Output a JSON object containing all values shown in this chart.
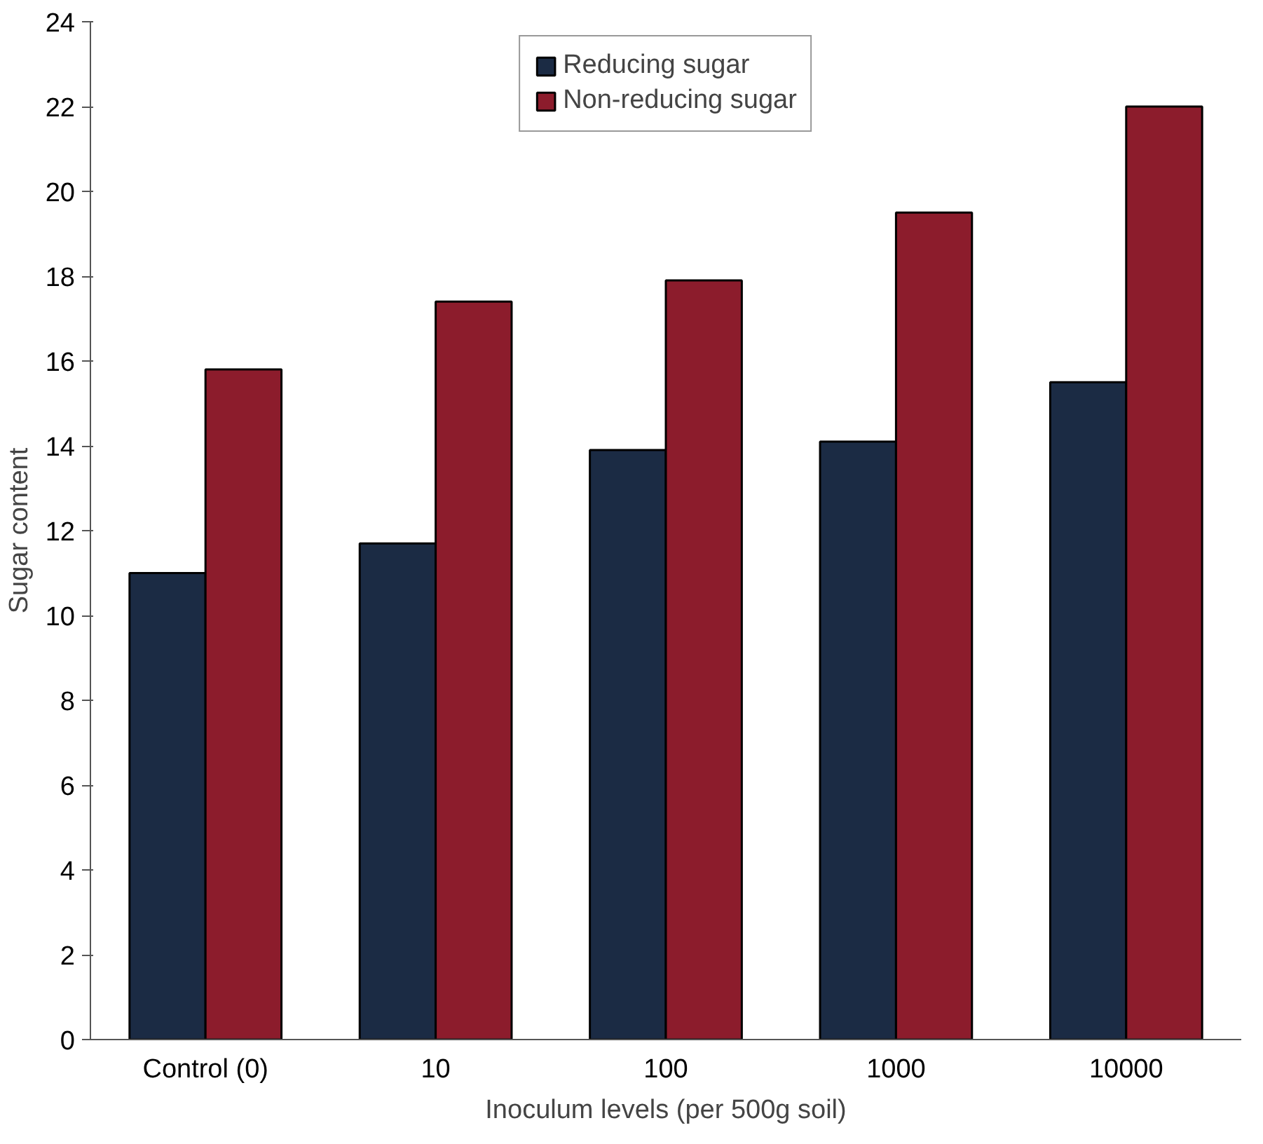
{
  "chart_data": {
    "type": "bar",
    "xlabel": "Inoculum levels (per 500g soil)",
    "ylabel": "Sugar content",
    "categories": [
      "Control (0)",
      "10",
      "100",
      "1000",
      "10000"
    ],
    "series": [
      {
        "name": "Reducing sugar",
        "color": "#1b2b44",
        "values": [
          11.0,
          11.7,
          13.9,
          14.1,
          15.5
        ]
      },
      {
        "name": "Non-reducing sugar",
        "color": "#8c1c2c",
        "values": [
          15.8,
          17.4,
          17.9,
          19.5,
          22.0
        ]
      }
    ],
    "ylim": [
      0,
      24
    ],
    "yticks": [
      0,
      2,
      4,
      6,
      8,
      10,
      12,
      14,
      16,
      18,
      20,
      22,
      24
    ],
    "grid": false,
    "legend": "top"
  }
}
